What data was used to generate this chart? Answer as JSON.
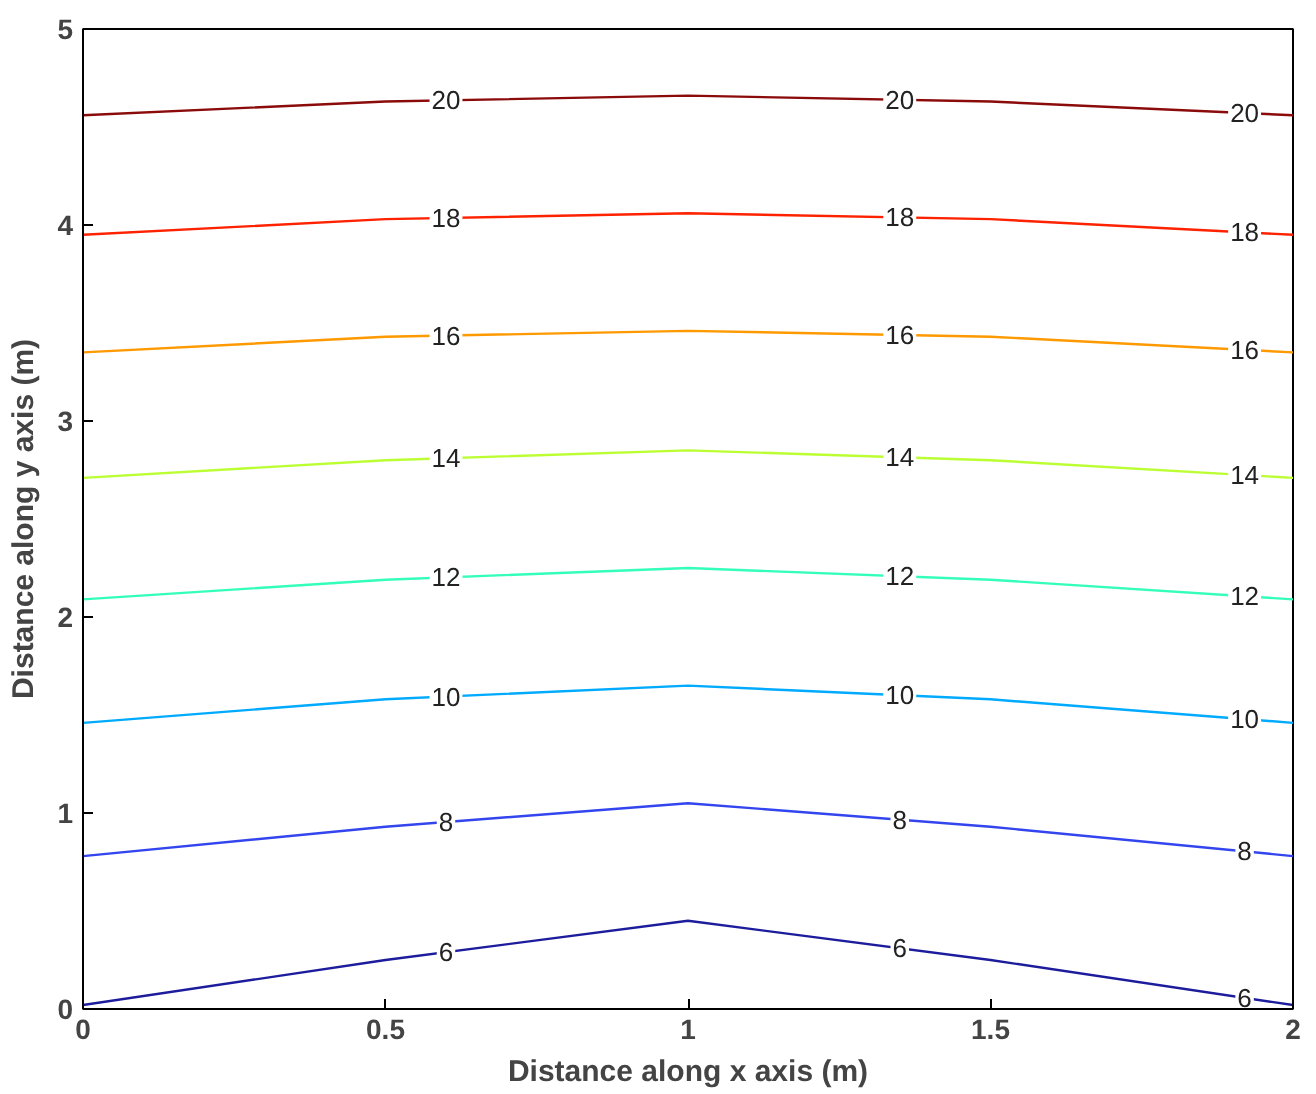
{
  "chart_data": {
    "type": "line",
    "xlabel": "Distance along x axis (m)",
    "ylabel": "Distance along y axis (m)",
    "xlim": [
      0,
      2
    ],
    "ylim": [
      0,
      5
    ],
    "xticks": [
      0,
      0.5,
      1,
      1.5,
      2
    ],
    "yticks": [
      0,
      1,
      2,
      3,
      4,
      5
    ],
    "grid": false,
    "marker": "none",
    "line_style": "solid",
    "series": [
      {
        "name": "6",
        "color": "#1c1c9c",
        "x": [
          0,
          0.5,
          1,
          1.5,
          2
        ],
        "values": [
          0.02,
          0.25,
          0.45,
          0.25,
          0.02
        ]
      },
      {
        "name": "8",
        "color": "#3345ee",
        "x": [
          0,
          0.5,
          1,
          1.5,
          2
        ],
        "values": [
          0.78,
          0.93,
          1.05,
          0.93,
          0.78
        ]
      },
      {
        "name": "10",
        "color": "#00aaff",
        "x": [
          0,
          0.5,
          1,
          1.5,
          2
        ],
        "values": [
          1.46,
          1.58,
          1.65,
          1.58,
          1.46
        ]
      },
      {
        "name": "12",
        "color": "#33ffbb",
        "x": [
          0,
          0.5,
          1,
          1.5,
          2
        ],
        "values": [
          2.09,
          2.19,
          2.25,
          2.19,
          2.09
        ]
      },
      {
        "name": "14",
        "color": "#bbff33",
        "x": [
          0,
          0.5,
          1,
          1.5,
          2
        ],
        "values": [
          2.71,
          2.8,
          2.85,
          2.8,
          2.71
        ]
      },
      {
        "name": "16",
        "color": "#ff9900",
        "x": [
          0,
          0.5,
          1,
          1.5,
          2
        ],
        "values": [
          3.35,
          3.43,
          3.46,
          3.43,
          3.35
        ]
      },
      {
        "name": "18",
        "color": "#ff2200",
        "x": [
          0,
          0.5,
          1,
          1.5,
          2
        ],
        "values": [
          3.95,
          4.03,
          4.06,
          4.03,
          3.95
        ]
      },
      {
        "name": "20",
        "color": "#8b0a0a",
        "x": [
          0,
          0.5,
          1,
          1.5,
          2
        ],
        "values": [
          4.56,
          4.63,
          4.66,
          4.63,
          4.56
        ]
      }
    ]
  }
}
